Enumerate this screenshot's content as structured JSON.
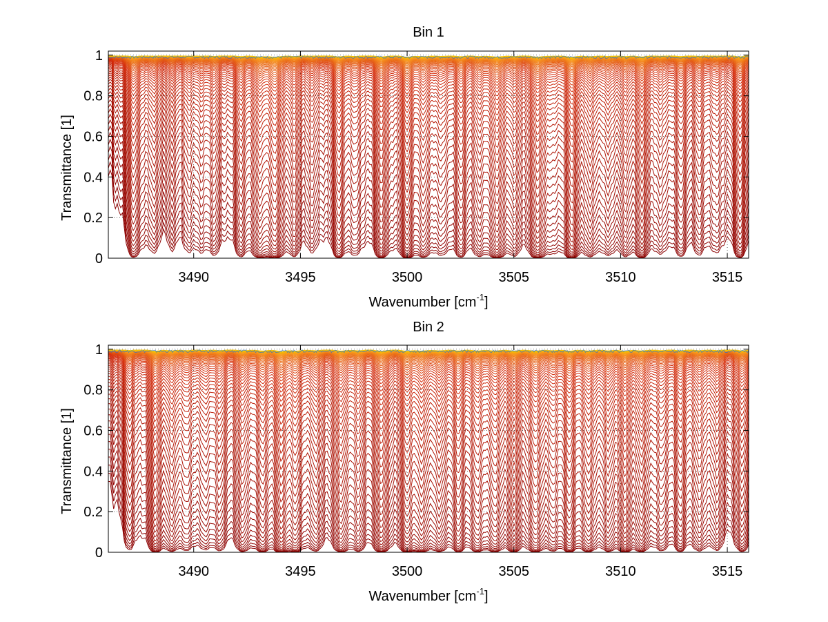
{
  "chart_data": [
    {
      "type": "line",
      "title": "Bin 1",
      "xlabel_base": "Wavenumber [cm",
      "xlabel_sup": "-1",
      "xlabel_tail": "]",
      "ylabel": "Transmittance [1]",
      "xlim": [
        3486,
        3516
      ],
      "ylim": [
        0,
        1.02
      ],
      "xticks": [
        3490,
        3495,
        3500,
        3505,
        3510,
        3515
      ],
      "yticks": [
        0,
        0.2,
        0.4,
        0.6,
        0.8,
        1
      ],
      "grid": true,
      "n_curves": 60,
      "absorption_lines": [
        {
          "x": 3487.2,
          "depth": 0.75
        },
        {
          "x": 3488.1,
          "depth": 0.4
        },
        {
          "x": 3489.0,
          "depth": 0.3
        },
        {
          "x": 3489.8,
          "depth": 0.35
        },
        {
          "x": 3490.4,
          "depth": 0.3
        },
        {
          "x": 3491.0,
          "depth": 0.45
        },
        {
          "x": 3492.2,
          "depth": 0.55
        },
        {
          "x": 3493.1,
          "depth": 0.75
        },
        {
          "x": 3493.8,
          "depth": 1.0
        },
        {
          "x": 3494.7,
          "depth": 0.5
        },
        {
          "x": 3495.6,
          "depth": 0.35
        },
        {
          "x": 3496.8,
          "depth": 0.75
        },
        {
          "x": 3497.6,
          "depth": 0.45
        },
        {
          "x": 3498.8,
          "depth": 0.85
        },
        {
          "x": 3500.0,
          "depth": 0.95
        },
        {
          "x": 3500.8,
          "depth": 0.6
        },
        {
          "x": 3501.6,
          "depth": 0.45
        },
        {
          "x": 3502.5,
          "depth": 0.6
        },
        {
          "x": 3503.4,
          "depth": 0.5
        },
        {
          "x": 3504.2,
          "depth": 0.9
        },
        {
          "x": 3505.0,
          "depth": 0.45
        },
        {
          "x": 3506.1,
          "depth": 0.95
        },
        {
          "x": 3506.8,
          "depth": 0.3
        },
        {
          "x": 3507.7,
          "depth": 1.0
        },
        {
          "x": 3508.6,
          "depth": 0.55
        },
        {
          "x": 3509.4,
          "depth": 0.45
        },
        {
          "x": 3510.2,
          "depth": 0.5
        },
        {
          "x": 3511.0,
          "depth": 0.8
        },
        {
          "x": 3511.9,
          "depth": 0.4
        },
        {
          "x": 3512.8,
          "depth": 0.55
        },
        {
          "x": 3513.7,
          "depth": 0.45
        },
        {
          "x": 3514.5,
          "depth": 0.4
        },
        {
          "x": 3515.6,
          "depth": 0.8
        }
      ],
      "colors": {
        "deep": "#8b0000",
        "mid": "#d42a0a",
        "light": "#f7941d",
        "top": "#f5c400",
        "noise": "#1f6fd1"
      }
    },
    {
      "type": "line",
      "title": "Bin 2",
      "xlabel_base": "Wavenumber [cm",
      "xlabel_sup": "-1",
      "xlabel_tail": "]",
      "ylabel": "Transmittance [1]",
      "xlim": [
        3486,
        3516
      ],
      "ylim": [
        0,
        1.02
      ],
      "xticks": [
        3490,
        3495,
        3500,
        3505,
        3510,
        3515
      ],
      "yticks": [
        0,
        0.2,
        0.4,
        0.6,
        0.8,
        1
      ],
      "grid": true,
      "n_curves": 60,
      "absorption_lines": [
        {
          "x": 3487.0,
          "depth": 0.55
        },
        {
          "x": 3488.2,
          "depth": 0.9
        },
        {
          "x": 3489.0,
          "depth": 0.6
        },
        {
          "x": 3489.7,
          "depth": 0.5
        },
        {
          "x": 3490.5,
          "depth": 0.45
        },
        {
          "x": 3491.2,
          "depth": 0.55
        },
        {
          "x": 3492.3,
          "depth": 0.7
        },
        {
          "x": 3493.2,
          "depth": 0.75
        },
        {
          "x": 3494.1,
          "depth": 1.0
        },
        {
          "x": 3494.8,
          "depth": 0.75
        },
        {
          "x": 3495.7,
          "depth": 0.6
        },
        {
          "x": 3496.9,
          "depth": 0.85
        },
        {
          "x": 3497.7,
          "depth": 0.6
        },
        {
          "x": 3498.8,
          "depth": 0.95
        },
        {
          "x": 3500.0,
          "depth": 0.9
        },
        {
          "x": 3500.7,
          "depth": 0.75
        },
        {
          "x": 3501.5,
          "depth": 0.65
        },
        {
          "x": 3502.4,
          "depth": 0.7
        },
        {
          "x": 3503.3,
          "depth": 0.7
        },
        {
          "x": 3504.1,
          "depth": 0.75
        },
        {
          "x": 3505.0,
          "depth": 0.8
        },
        {
          "x": 3506.0,
          "depth": 0.85
        },
        {
          "x": 3506.8,
          "depth": 0.5
        },
        {
          "x": 3507.6,
          "depth": 0.8
        },
        {
          "x": 3508.5,
          "depth": 0.75
        },
        {
          "x": 3509.4,
          "depth": 0.6
        },
        {
          "x": 3510.2,
          "depth": 0.85
        },
        {
          "x": 3511.0,
          "depth": 0.7
        },
        {
          "x": 3511.9,
          "depth": 0.55
        },
        {
          "x": 3512.8,
          "depth": 0.65
        },
        {
          "x": 3513.7,
          "depth": 0.6
        },
        {
          "x": 3514.5,
          "depth": 0.55
        },
        {
          "x": 3515.7,
          "depth": 0.8
        }
      ],
      "colors": {
        "deep": "#8b0000",
        "mid": "#d42a0a",
        "light": "#f7941d",
        "top": "#f5c400",
        "noise": "#1f6fd1"
      }
    }
  ]
}
